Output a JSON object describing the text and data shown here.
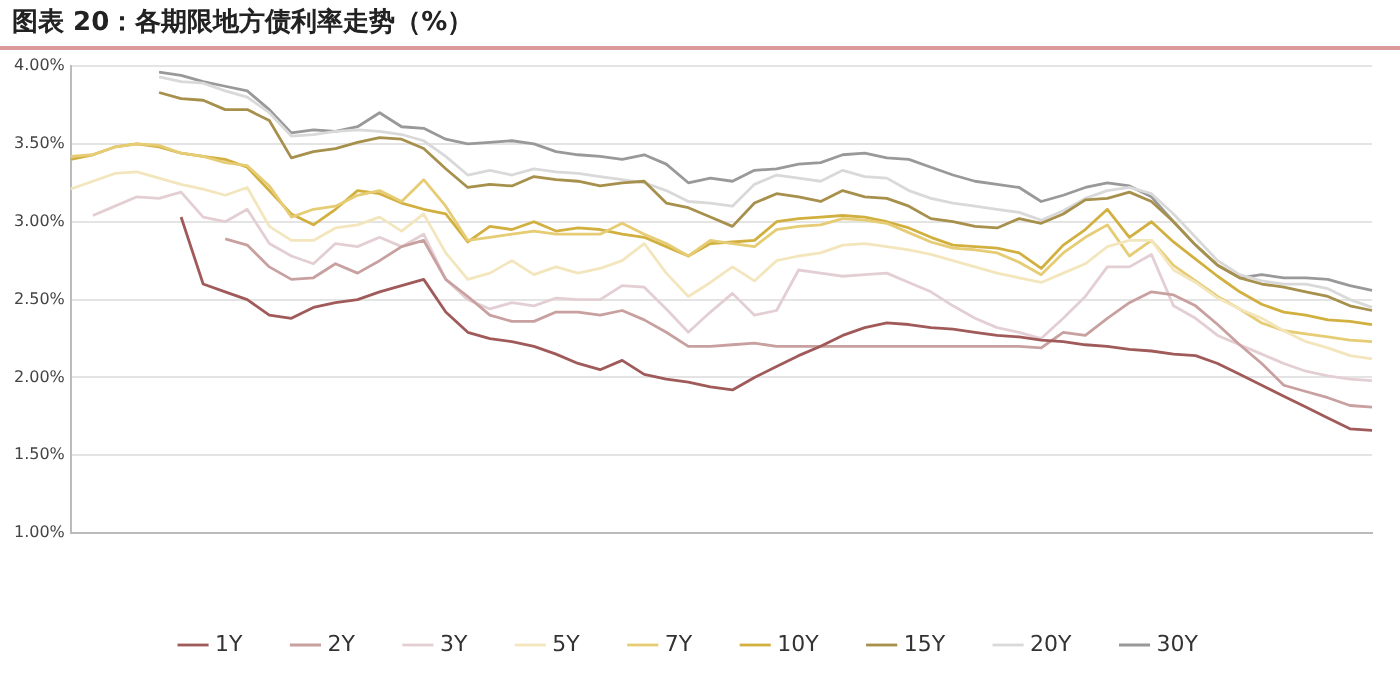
{
  "chart_data": {
    "type": "line",
    "title": "图表 20：各期限地方债利率走势（%）",
    "categories": [
      null,
      null,
      null,
      null,
      null,
      null,
      null,
      null,
      null,
      null,
      null,
      null,
      null,
      null,
      null,
      null,
      null,
      null,
      null,
      null,
      null,
      null,
      null,
      null,
      null,
      null,
      null,
      null,
      null,
      null,
      null,
      null,
      null,
      null,
      null,
      null,
      null,
      null,
      null,
      null,
      null,
      null,
      null,
      null,
      null,
      null,
      null,
      null,
      null,
      null,
      null,
      null,
      null,
      null,
      null,
      null,
      null,
      null,
      null,
      null
    ],
    "ylim": [
      1,
      4
    ],
    "yticks": [
      {
        "value": 1,
        "label": "1.00%"
      },
      {
        "value": 1.5,
        "label": "1.50%"
      },
      {
        "value": 2,
        "label": "2.00%"
      },
      {
        "value": 2.5,
        "label": "2.50%"
      },
      {
        "value": 3,
        "label": "3.00%"
      },
      {
        "value": 3.5,
        "label": "3.50%"
      },
      {
        "value": 4,
        "label": "4.00%"
      }
    ],
    "grid": "y",
    "legend": "bottom",
    "marker": "none",
    "line_style": "solid",
    "series": [
      {
        "name": "1Y",
        "color": "#a05a5a",
        "values": [
          null,
          null,
          null,
          null,
          null,
          3.03,
          2.6,
          2.55,
          2.5,
          2.4,
          2.38,
          2.45,
          2.48,
          2.5,
          2.55,
          2.59,
          2.63,
          2.42,
          2.29,
          2.25,
          2.23,
          2.2,
          2.15,
          2.09,
          2.05,
          2.11,
          2.02,
          1.99,
          1.97,
          1.94,
          1.92,
          2.0,
          2.07,
          2.14,
          2.2,
          2.27,
          2.32,
          2.35,
          2.34,
          2.32,
          2.31,
          2.29,
          2.27,
          2.26,
          2.24,
          2.23,
          2.21,
          2.2,
          2.18,
          2.17,
          2.15,
          2.14,
          2.09,
          2.02,
          1.95,
          1.88,
          1.81,
          1.74,
          1.67,
          1.66
        ]
      },
      {
        "name": "2Y",
        "color": "#c9a0a0",
        "values": [
          null,
          null,
          null,
          null,
          null,
          null,
          null,
          2.89,
          2.85,
          2.71,
          2.63,
          2.64,
          2.73,
          2.67,
          2.75,
          2.84,
          2.88,
          2.63,
          2.52,
          2.4,
          2.36,
          2.36,
          2.42,
          2.42,
          2.4,
          2.43,
          2.37,
          2.29,
          2.2,
          2.2,
          2.21,
          2.22,
          2.2,
          2.2,
          2.2,
          2.2,
          2.2,
          2.2,
          2.2,
          2.2,
          2.2,
          2.2,
          2.2,
          2.2,
          2.19,
          2.29,
          2.27,
          2.38,
          2.48,
          2.55,
          2.53,
          2.46,
          2.34,
          2.21,
          2.09,
          1.95,
          1.91,
          1.87,
          1.82,
          1.81
        ]
      },
      {
        "name": "3Y",
        "color": "#e3cfd3",
        "values": [
          null,
          3.04,
          3.1,
          3.16,
          3.15,
          3.19,
          3.03,
          3.0,
          3.08,
          2.86,
          2.78,
          2.73,
          2.86,
          2.84,
          2.9,
          2.84,
          2.92,
          2.63,
          2.5,
          2.44,
          2.48,
          2.46,
          2.51,
          2.5,
          2.5,
          2.59,
          2.58,
          2.44,
          2.29,
          2.42,
          2.54,
          2.4,
          2.43,
          2.69,
          2.67,
          2.65,
          2.66,
          2.67,
          2.61,
          2.55,
          2.46,
          2.38,
          2.32,
          2.29,
          2.25,
          2.38,
          2.52,
          2.71,
          2.71,
          2.79,
          2.46,
          2.38,
          2.27,
          2.21,
          2.15,
          2.09,
          2.04,
          2.01,
          1.99,
          1.98
        ]
      },
      {
        "name": "5Y",
        "color": "#f3e6bd",
        "values": [
          3.21,
          3.26,
          3.31,
          3.32,
          3.28,
          3.24,
          3.21,
          3.17,
          3.22,
          2.97,
          2.88,
          2.88,
          2.96,
          2.98,
          3.03,
          2.94,
          3.05,
          2.8,
          2.63,
          2.67,
          2.75,
          2.66,
          2.71,
          2.67,
          2.7,
          2.75,
          2.86,
          2.67,
          2.52,
          2.61,
          2.71,
          2.62,
          2.75,
          2.78,
          2.8,
          2.85,
          2.86,
          2.84,
          2.82,
          2.79,
          2.75,
          2.71,
          2.67,
          2.64,
          2.61,
          2.67,
          2.73,
          2.84,
          2.88,
          2.88,
          2.69,
          2.61,
          2.51,
          2.44,
          2.38,
          2.3,
          2.23,
          2.19,
          2.14,
          2.12
        ]
      },
      {
        "name": "7Y",
        "color": "#e6cc74",
        "values": [
          3.42,
          3.43,
          3.48,
          3.5,
          3.49,
          3.44,
          3.42,
          3.38,
          3.36,
          3.23,
          3.03,
          3.08,
          3.1,
          3.17,
          3.2,
          3.13,
          3.27,
          3.1,
          2.88,
          2.9,
          2.92,
          2.94,
          2.92,
          2.92,
          2.92,
          2.99,
          2.92,
          2.86,
          2.78,
          2.88,
          2.86,
          2.84,
          2.95,
          2.97,
          2.98,
          3.02,
          3.01,
          2.99,
          2.93,
          2.87,
          2.83,
          2.82,
          2.8,
          2.74,
          2.66,
          2.8,
          2.9,
          2.98,
          2.78,
          2.88,
          2.72,
          2.62,
          2.52,
          2.44,
          2.35,
          2.3,
          2.28,
          2.26,
          2.24,
          2.23
        ]
      },
      {
        "name": "10Y",
        "color": "#d2b040",
        "values": [
          3.4,
          3.43,
          3.48,
          3.5,
          3.48,
          3.44,
          3.42,
          3.4,
          3.35,
          3.2,
          3.05,
          2.98,
          3.08,
          3.2,
          3.18,
          3.12,
          3.08,
          3.05,
          2.87,
          2.97,
          2.95,
          3.0,
          2.94,
          2.96,
          2.95,
          2.92,
          2.9,
          2.84,
          2.78,
          2.86,
          2.87,
          2.88,
          3.0,
          3.02,
          3.03,
          3.04,
          3.03,
          3.0,
          2.96,
          2.9,
          2.85,
          2.84,
          2.83,
          2.8,
          2.7,
          2.85,
          2.95,
          3.08,
          2.9,
          3.0,
          2.87,
          2.76,
          2.65,
          2.55,
          2.47,
          2.42,
          2.4,
          2.37,
          2.36,
          2.34
        ]
      },
      {
        "name": "15Y",
        "color": "#a6904c",
        "values": [
          null,
          null,
          null,
          null,
          3.83,
          3.79,
          3.78,
          3.72,
          3.72,
          3.65,
          3.41,
          3.45,
          3.47,
          3.51,
          3.54,
          3.53,
          3.47,
          3.34,
          3.22,
          3.24,
          3.23,
          3.29,
          3.27,
          3.26,
          3.23,
          3.25,
          3.26,
          3.12,
          3.09,
          3.03,
          2.97,
          3.12,
          3.18,
          3.16,
          3.13,
          3.2,
          3.16,
          3.15,
          3.1,
          3.02,
          3.0,
          2.97,
          2.96,
          3.02,
          2.99,
          3.05,
          3.14,
          3.15,
          3.19,
          3.13,
          3.0,
          2.85,
          2.72,
          2.64,
          2.6,
          2.58,
          2.55,
          2.52,
          2.46,
          2.43
        ]
      },
      {
        "name": "20Y",
        "color": "#d9d9d9",
        "values": [
          null,
          null,
          null,
          null,
          3.93,
          3.9,
          3.89,
          3.84,
          3.8,
          3.7,
          3.55,
          3.56,
          3.58,
          3.59,
          3.58,
          3.56,
          3.52,
          3.42,
          3.3,
          3.33,
          3.3,
          3.34,
          3.32,
          3.31,
          3.29,
          3.27,
          3.25,
          3.2,
          3.13,
          3.12,
          3.1,
          3.24,
          3.3,
          3.28,
          3.26,
          3.33,
          3.29,
          3.28,
          3.2,
          3.15,
          3.12,
          3.1,
          3.08,
          3.06,
          3.01,
          3.07,
          3.15,
          3.2,
          3.22,
          3.18,
          3.05,
          2.9,
          2.75,
          2.66,
          2.62,
          2.6,
          2.6,
          2.57,
          2.5,
          2.45
        ]
      },
      {
        "name": "30Y",
        "color": "#999999",
        "values": [
          null,
          null,
          null,
          null,
          3.96,
          3.94,
          3.9,
          3.87,
          3.84,
          3.72,
          3.57,
          3.59,
          3.58,
          3.61,
          3.7,
          3.61,
          3.6,
          3.53,
          3.5,
          3.51,
          3.52,
          3.5,
          3.45,
          3.43,
          3.42,
          3.4,
          3.43,
          3.37,
          3.25,
          3.28,
          3.26,
          3.33,
          3.34,
          3.37,
          3.38,
          3.43,
          3.44,
          3.41,
          3.4,
          3.35,
          3.3,
          3.26,
          3.24,
          3.22,
          3.13,
          3.17,
          3.22,
          3.25,
          3.23,
          3.16,
          3.0,
          2.85,
          2.72,
          2.64,
          2.66,
          2.64,
          2.64,
          2.63,
          2.59,
          2.56
        ]
      }
    ]
  }
}
